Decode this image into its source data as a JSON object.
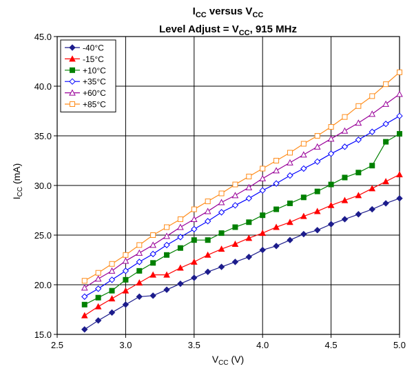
{
  "chart_data": {
    "type": "line",
    "title": {
      "line1": {
        "main": "I",
        "sub": "CC",
        "rest": " versus V",
        "sub2": "CC"
      },
      "line2": {
        "main": "Level Adjust = V",
        "sub": "CC",
        "rest": ", 915 MHz"
      }
    },
    "xlabel": {
      "main": "V",
      "sub": "CC",
      "rest": " (V)"
    },
    "ylabel": {
      "main": "I",
      "sub": "CC",
      "rest": " (mA)"
    },
    "xlim": [
      2.5,
      5.0
    ],
    "ylim": [
      15.0,
      45.0
    ],
    "x_ticks": [
      "2.5",
      "3.0",
      "3.5",
      "4.0",
      "4.5",
      "5.0"
    ],
    "y_ticks": [
      "15.0",
      "20.0",
      "25.0",
      "30.0",
      "35.0",
      "40.0",
      "45.0"
    ],
    "grid": true,
    "legend_position": "top-left",
    "x": [
      2.7,
      2.8,
      2.9,
      3.0,
      3.1,
      3.2,
      3.3,
      3.4,
      3.5,
      3.6,
      3.7,
      3.8,
      3.9,
      4.0,
      4.1,
      4.2,
      4.3,
      4.4,
      4.5,
      4.6,
      4.7,
      4.8,
      4.9,
      5.0
    ],
    "series": [
      {
        "name": "-40°C",
        "color": "#1c1c8c",
        "marker": "diamond-filled",
        "values": [
          15.5,
          16.4,
          17.2,
          18.0,
          18.8,
          18.9,
          19.5,
          20.1,
          20.7,
          21.3,
          21.8,
          22.3,
          22.8,
          23.5,
          23.9,
          24.5,
          25.1,
          25.5,
          26.1,
          26.6,
          27.1,
          27.6,
          28.2,
          28.7
        ]
      },
      {
        "name": "-15°C",
        "color": "#ff0000",
        "marker": "triangle-filled",
        "values": [
          16.9,
          17.8,
          18.6,
          19.4,
          20.2,
          21.0,
          21.0,
          21.7,
          22.3,
          23.0,
          23.6,
          24.1,
          24.7,
          25.2,
          25.8,
          26.3,
          26.9,
          27.4,
          28.0,
          28.5,
          29.0,
          29.7,
          30.4,
          31.1
        ]
      },
      {
        "name": "+10°C",
        "color": "#008000",
        "marker": "square-filled",
        "values": [
          18.0,
          18.7,
          19.4,
          20.5,
          21.4,
          22.2,
          23.0,
          23.7,
          24.5,
          24.5,
          25.2,
          25.8,
          26.3,
          27.0,
          27.6,
          28.2,
          28.8,
          29.4,
          30.1,
          30.8,
          31.3,
          32.0,
          34.4,
          35.2
        ]
      },
      {
        "name": "+35°C",
        "color": "#0000ff",
        "marker": "diamond-open",
        "values": [
          18.8,
          19.6,
          20.5,
          21.4,
          22.3,
          23.1,
          24.0,
          24.8,
          25.6,
          26.4,
          27.3,
          28.0,
          28.7,
          29.5,
          30.2,
          31.0,
          31.7,
          32.4,
          33.2,
          33.9,
          34.6,
          35.4,
          36.2,
          37.0
        ]
      },
      {
        "name": "+60°C",
        "color": "#990099",
        "marker": "triangle-open",
        "values": [
          19.7,
          20.6,
          21.4,
          22.4,
          23.2,
          24.0,
          24.9,
          25.8,
          26.6,
          27.4,
          28.3,
          29.0,
          29.8,
          30.7,
          31.5,
          32.3,
          33.1,
          33.9,
          34.7,
          35.5,
          36.3,
          37.2,
          38.2,
          39.2
        ]
      },
      {
        "name": "+85°C",
        "color": "#ff8c1a",
        "marker": "square-open",
        "values": [
          20.4,
          21.2,
          22.1,
          23.0,
          24.0,
          25.0,
          25.8,
          26.6,
          27.6,
          28.4,
          29.2,
          30.1,
          30.9,
          31.7,
          32.5,
          33.3,
          34.2,
          35.0,
          35.9,
          36.9,
          38.0,
          39.0,
          40.2,
          41.4
        ]
      }
    ]
  }
}
